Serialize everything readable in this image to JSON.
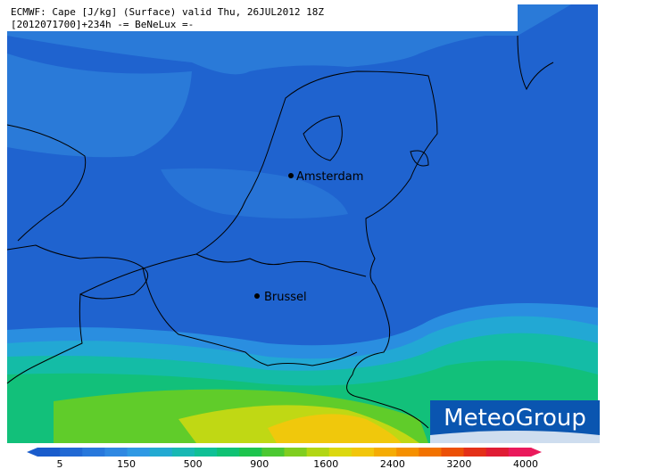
{
  "header": {
    "line1": "ECMWF: Cape [J/kg] (Surface) valid Thu, 26JUL2012 18Z",
    "line2": "[2012071700]+234h  -= BeNeLux =-"
  },
  "cities": [
    {
      "name": "Amsterdam"
    },
    {
      "name": "Brussel"
    }
  ],
  "logo": "MeteoGroup",
  "colorbar": {
    "ticks": [
      5,
      150,
      500,
      900,
      1600,
      2400,
      3200,
      4000
    ],
    "colors": [
      "#1a5ccc",
      "#2169d4",
      "#2878dc",
      "#2f88e2",
      "#2f99e4",
      "#23aad2",
      "#18b8b4",
      "#10c096",
      "#10c274",
      "#1ec44e",
      "#4cc832",
      "#80ce20",
      "#b2d614",
      "#dcd810",
      "#f2c60c",
      "#f5ac04",
      "#f59000",
      "#f27200",
      "#ec5006",
      "#e43018",
      "#e01c34",
      "#ea1a5c"
    ]
  }
}
